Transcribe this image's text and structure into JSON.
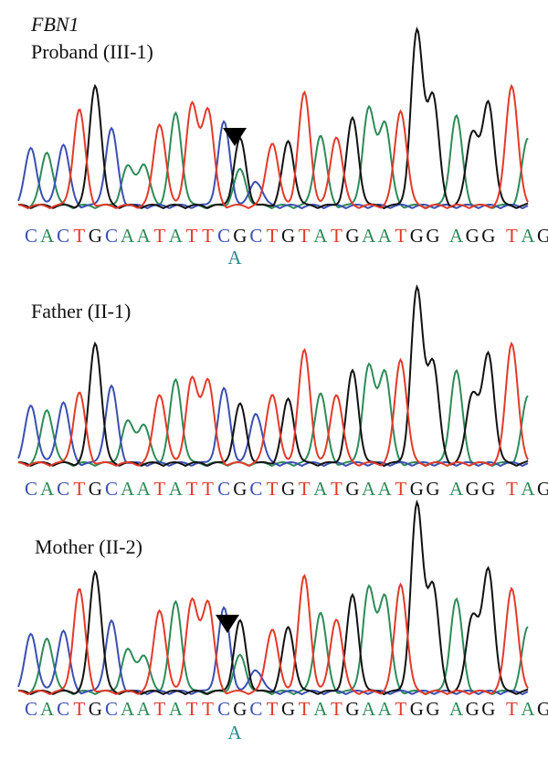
{
  "gene": "FBN1",
  "colors": {
    "A": "#2e8b57",
    "C": "#3a4fb0",
    "G": "#111111",
    "T": "#e23a2a",
    "alt": "#2a8a8a"
  },
  "panels": [
    {
      "label": "Proband (III-1)",
      "sequence": "CACTGCAATATTCGCTGTATGAATGGAGGTAG",
      "variant": {
        "ref": "G",
        "alt": "A",
        "arrow": true
      }
    },
    {
      "label": "Father (II-1)",
      "sequence": "CACTGCAATATTCGCTGTATGAATGGAGGTAG",
      "variant": null
    },
    {
      "label": "Mother (II-2)",
      "sequence": "CACTGCAATATTCGCTGTATGAATGGAGGTAG",
      "variant": {
        "ref": "G",
        "alt": "A",
        "arrow": true
      }
    }
  ],
  "peak_heights": [
    [
      0.45,
      0.42,
      0.48,
      0.75,
      0.95,
      0.6,
      0.3,
      0.32,
      0.65,
      0.72,
      0.78,
      0.75,
      0.65,
      0.52,
      0.2,
      0.5,
      0.5,
      0.88,
      0.55,
      0.55,
      0.68,
      0.75,
      0.65,
      0.75,
      1.35,
      0.85,
      0.7,
      0.58,
      0.8,
      0.95,
      0.52,
      0.45
    ],
    [
      0.45,
      0.42,
      0.48,
      0.55,
      0.95,
      0.6,
      0.32,
      0.3,
      0.55,
      0.65,
      0.65,
      0.65,
      0.58,
      0.46,
      0.4,
      0.55,
      0.5,
      0.88,
      0.55,
      0.55,
      0.72,
      0.75,
      0.72,
      0.82,
      1.35,
      0.78,
      0.72,
      0.55,
      0.85,
      0.95,
      0.52,
      0.45
    ],
    [
      0.45,
      0.42,
      0.48,
      0.8,
      0.95,
      0.55,
      0.32,
      0.28,
      0.65,
      0.7,
      0.7,
      0.7,
      0.65,
      0.55,
      0.18,
      0.5,
      0.5,
      0.9,
      0.62,
      0.58,
      0.75,
      0.8,
      0.75,
      0.85,
      1.45,
      0.82,
      0.72,
      0.6,
      0.95,
      0.82,
      0.5,
      0.42
    ]
  ]
}
